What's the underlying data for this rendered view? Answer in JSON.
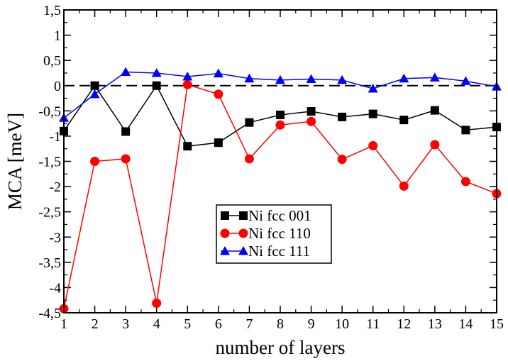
{
  "chart_data": {
    "type": "line",
    "title": "",
    "xlabel": "number of layers",
    "ylabel": "MCA [meV]",
    "xlim": [
      1,
      15
    ],
    "ylim": [
      -4.5,
      1.5
    ],
    "x_ticks": [
      1,
      2,
      3,
      4,
      5,
      6,
      7,
      8,
      9,
      10,
      11,
      12,
      13,
      14,
      15
    ],
    "x_tick_labels": [
      "1",
      "2",
      "3",
      "4",
      "5",
      "6",
      "7",
      "8",
      "9",
      "10",
      "11",
      "12",
      "13",
      "14",
      "15"
    ],
    "y_ticks": [
      -4.5,
      -4,
      -3.5,
      -3,
      -2.5,
      -2,
      -1.5,
      -1,
      -0.5,
      0,
      0.5,
      1,
      1.5
    ],
    "y_tick_labels": [
      "-4,5",
      "-4",
      "-3,5",
      "-3",
      "-2,5",
      "-2",
      "-1,5",
      "-1",
      "-0,5",
      "0",
      "0,5",
      "1",
      "1,5"
    ],
    "zero_line": true,
    "legend_position": "lower-center",
    "x": [
      1,
      2,
      3,
      4,
      5,
      6,
      7,
      8,
      9,
      10,
      11,
      12,
      13,
      14,
      15
    ],
    "series": [
      {
        "name": "Ni fcc 001",
        "color": "#000000",
        "marker": "square",
        "values": [
          -0.9,
          0.0,
          -0.91,
          0.0,
          -1.2,
          -1.13,
          -0.73,
          -0.58,
          -0.51,
          -0.62,
          -0.56,
          -0.68,
          -0.49,
          -0.88,
          -0.82
        ]
      },
      {
        "name": "Ni fcc 110",
        "color": "#ff0000",
        "marker": "circle",
        "values": [
          -4.42,
          -1.5,
          -1.45,
          -4.31,
          0.02,
          -0.17,
          -1.45,
          -0.78,
          -0.71,
          -1.46,
          -1.19,
          -1.99,
          -1.17,
          -1.9,
          -2.14
        ]
      },
      {
        "name": "Ni fcc 111",
        "color": "#0000ff",
        "marker": "triangle",
        "values": [
          -0.64,
          -0.17,
          0.27,
          0.25,
          0.18,
          0.24,
          0.14,
          0.11,
          0.13,
          0.11,
          -0.06,
          0.14,
          0.16,
          0.09,
          -0.02
        ]
      }
    ]
  }
}
